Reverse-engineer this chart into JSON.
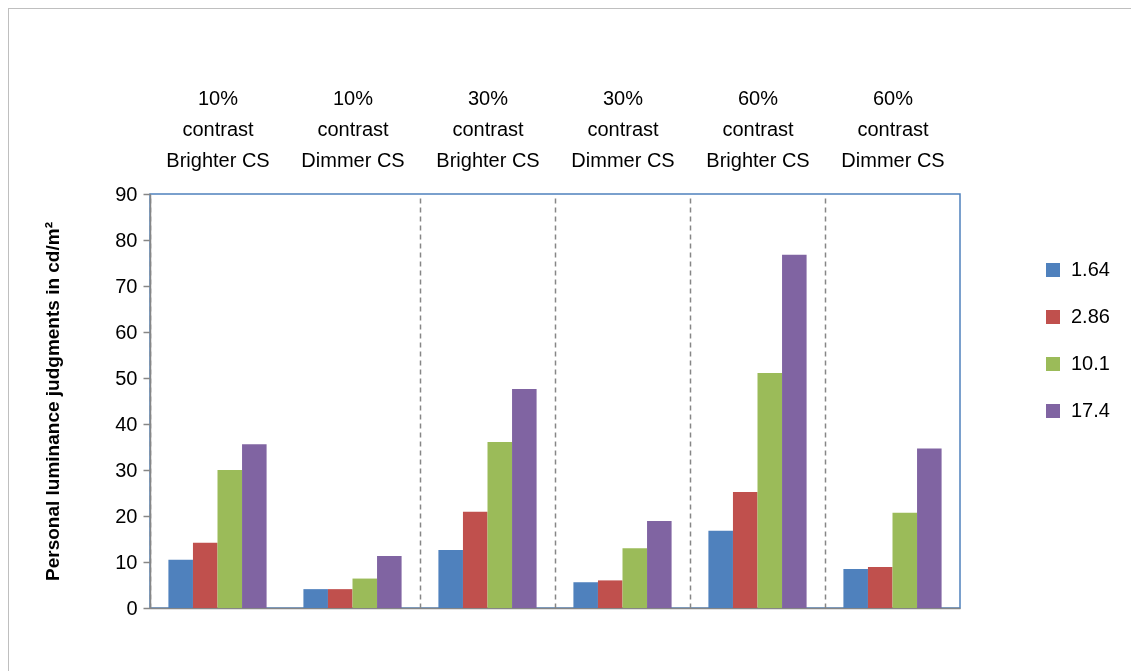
{
  "chart_data": {
    "type": "bar",
    "ylabel": "Personal luminance judgments in cd/m²",
    "categories": [
      "10%\ncontrast\nBrighter CS",
      "10%\ncontrast\nDimmer CS",
      "30%\ncontrast\nBrighter CS",
      "30%\ncontrast\nDimmer CS",
      "60%\ncontrast\nBrighter CS",
      "60%\ncontrast\nDimmer CS"
    ],
    "series": [
      {
        "name": "1.64",
        "color": "#4f81bd",
        "values": [
          10.5,
          4.1,
          12.6,
          5.6,
          16.8,
          8.5
        ]
      },
      {
        "name": "2.86",
        "color": "#c0504d",
        "values": [
          14.2,
          4.1,
          20.9,
          6.0,
          25.2,
          8.9
        ]
      },
      {
        "name": "10.1",
        "color": "#9bbb59",
        "values": [
          30.0,
          6.4,
          36.1,
          13.0,
          51.1,
          20.7
        ]
      },
      {
        "name": "17.4",
        "color": "#8064a2",
        "values": [
          35.6,
          11.3,
          47.6,
          18.9,
          76.8,
          34.7
        ]
      }
    ],
    "ylim": [
      0,
      90
    ],
    "yticks": [
      0,
      10,
      20,
      30,
      40,
      50,
      60,
      70,
      80,
      90
    ],
    "grid": "x",
    "legend": "right"
  }
}
